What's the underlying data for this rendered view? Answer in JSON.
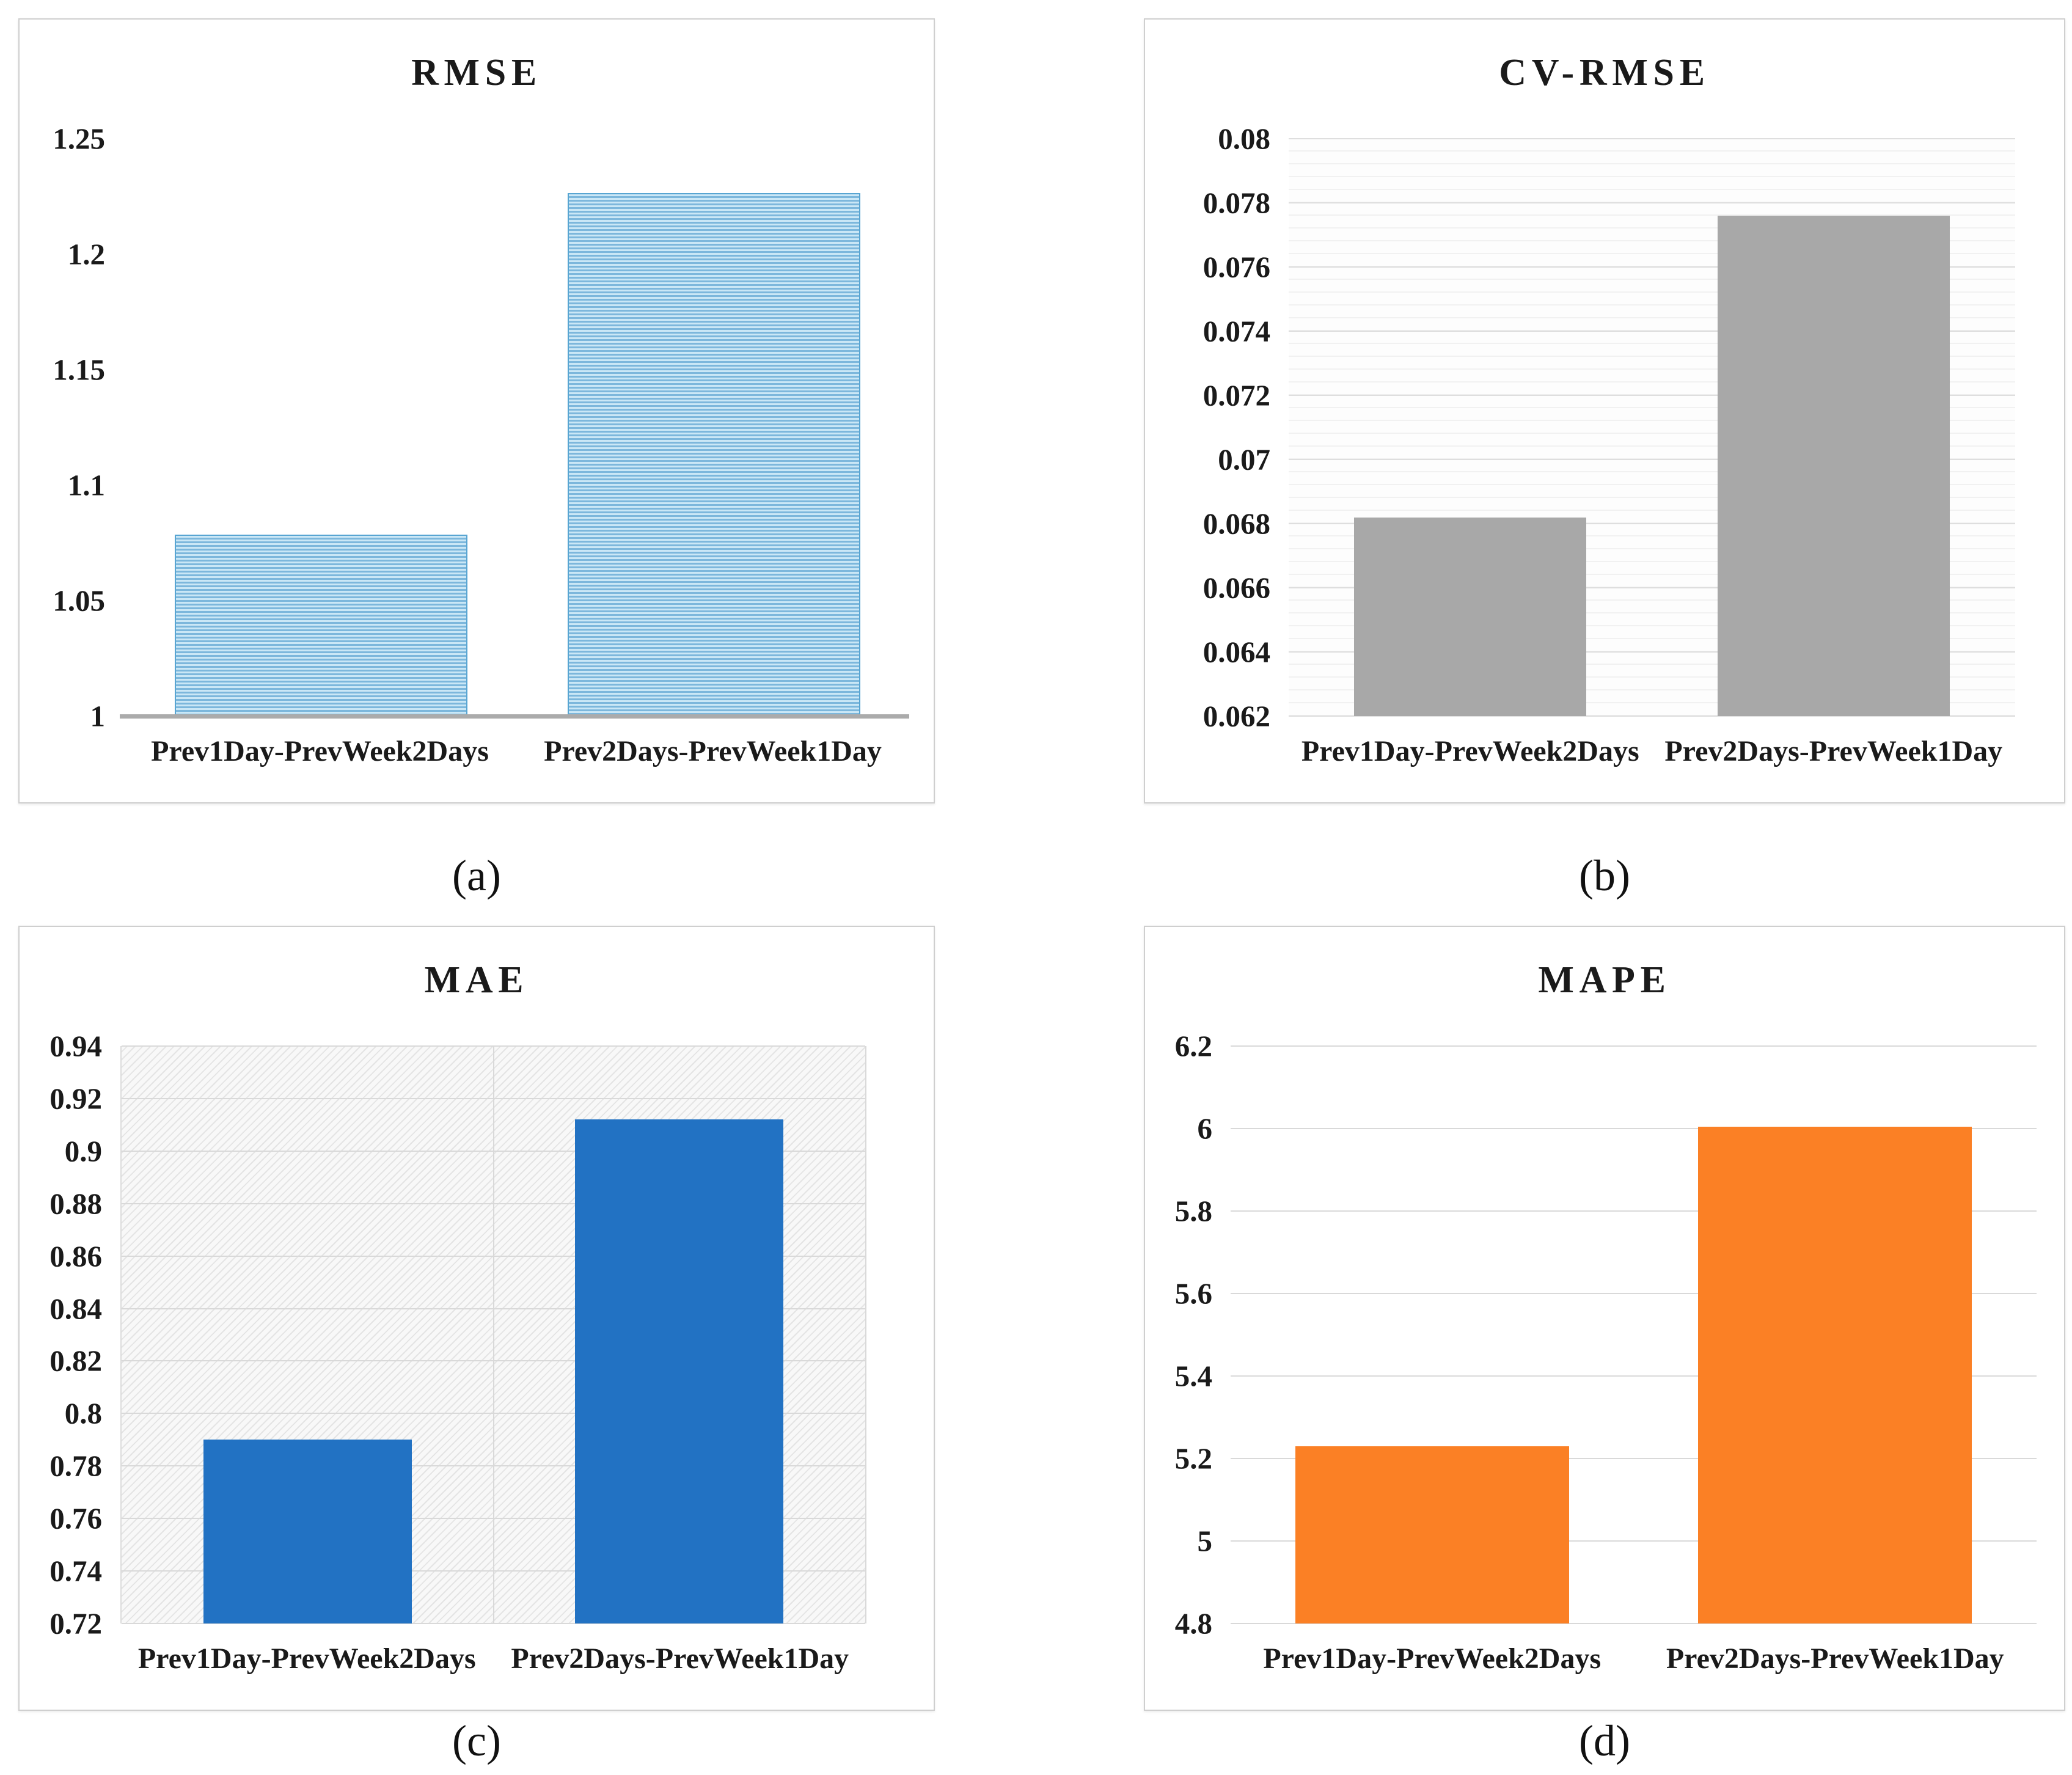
{
  "figure": {
    "captions": [
      "(a)",
      "(b)",
      "(c)",
      "(d)"
    ]
  },
  "chart_data": [
    {
      "type": "bar",
      "panel": "a",
      "caption": "(a)",
      "title": "RMSE",
      "categories": [
        "Prev1Day-PrevWeek2Days",
        "Prev2Days-PrevWeek1Day"
      ],
      "values": [
        1.078,
        1.226
      ],
      "ylim": [
        1,
        1.25
      ],
      "ytick_step": 0.05,
      "ytick_labels": [
        "1",
        "1.05",
        "1.1",
        "1.15",
        "1.2",
        "1.25"
      ],
      "xlabel": "",
      "ylabel": "",
      "grid": "none",
      "legend": "none",
      "plot_bg": "plain",
      "bar_fill": "striped",
      "bar_color": "#7cb7dc",
      "bar_color_light": "#cae7f6",
      "bar_border": "#58a5d2",
      "axis_line_color": "#ababab"
    },
    {
      "type": "bar",
      "panel": "b",
      "caption": "(b)",
      "title": "CV-RMSE",
      "categories": [
        "Prev1Day-PrevWeek2Days",
        "Prev2Days-PrevWeek1Day"
      ],
      "values": [
        0.0682,
        0.0776
      ],
      "ylim": [
        0.062,
        0.08
      ],
      "ytick_step": 0.002,
      "ytick_labels": [
        "0.062",
        "0.064",
        "0.066",
        "0.068",
        "0.07",
        "0.072",
        "0.074",
        "0.076",
        "0.078",
        "0.08"
      ],
      "xlabel": "",
      "ylabel": "",
      "grid": "minor-horizontal",
      "legend": "none",
      "plot_bg": "plain",
      "bar_fill": "solid",
      "bar_color": "#a8a8a8"
    },
    {
      "type": "bar",
      "panel": "c",
      "caption": "(c)",
      "title": "MAE",
      "categories": [
        "Prev1Day-PrevWeek2Days",
        "Prev2Days-PrevWeek1Day"
      ],
      "values": [
        0.79,
        0.912
      ],
      "ylim": [
        0.72,
        0.94
      ],
      "ytick_step": 0.02,
      "ytick_labels": [
        "0.72",
        "0.74",
        "0.76",
        "0.78",
        "0.8",
        "0.82",
        "0.84",
        "0.86",
        "0.88",
        "0.9",
        "0.92",
        "0.94"
      ],
      "xlabel": "",
      "ylabel": "",
      "grid": "major-horizontal",
      "legend": "none",
      "plot_bg": "hatch",
      "bar_fill": "solid",
      "bar_color": "#2272c3"
    },
    {
      "type": "bar",
      "panel": "d",
      "caption": "(d)",
      "title": "MAPE",
      "categories": [
        "Prev1Day-PrevWeek2Days",
        "Prev2Days-PrevWeek1Day"
      ],
      "values": [
        5.23,
        6.005
      ],
      "ylim": [
        4.8,
        6.2
      ],
      "ytick_step": 0.2,
      "ytick_labels": [
        "4.8",
        "5",
        "5.2",
        "5.4",
        "5.6",
        "5.8",
        "6",
        "6.2"
      ],
      "xlabel": "",
      "ylabel": "",
      "grid": "major-horizontal",
      "legend": "none",
      "plot_bg": "plain",
      "bar_fill": "solid",
      "bar_color": "#fb8025"
    }
  ]
}
